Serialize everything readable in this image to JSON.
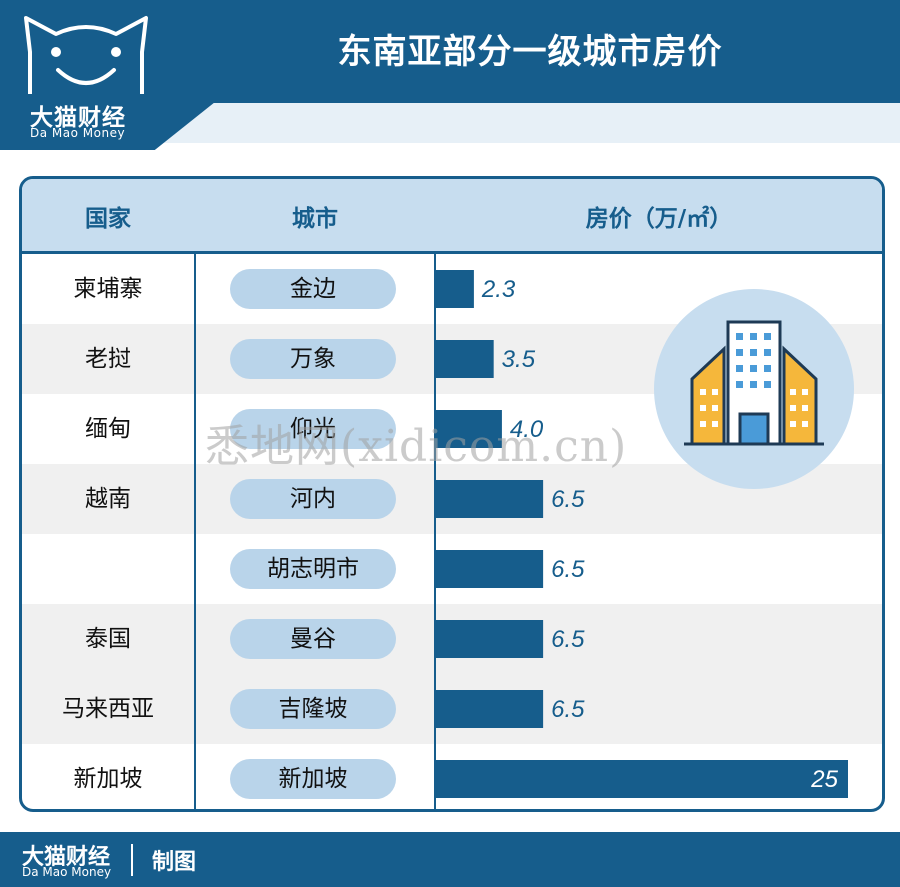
{
  "header": {
    "title": "东南亚部分一级城市房价",
    "logo_cn": "大猫财经",
    "logo_en": "Da Mao Money"
  },
  "table": {
    "col_country": "国家",
    "col_city": "城市",
    "col_price": "房价（万/㎡）"
  },
  "colors": {
    "primary": "#165d8c",
    "header_bg": "#c7ddef",
    "pill": "#b9d4ea",
    "alt_row": "#f0f0f0"
  },
  "chart_data": {
    "type": "bar",
    "title": "东南亚部分一级城市房价",
    "ylabel": "房价（万/㎡）",
    "xlim": [
      0,
      25
    ],
    "rows": [
      {
        "country": "柬埔寨",
        "city": "金边",
        "value": 2.3,
        "label": "2.3"
      },
      {
        "country": "老挝",
        "city": "万象",
        "value": 3.5,
        "label": "3.5"
      },
      {
        "country": "缅甸",
        "city": "仰光",
        "value": 4.0,
        "label": "4.0"
      },
      {
        "country": "越南",
        "city": "河内",
        "value": 6.5,
        "label": "6.5"
      },
      {
        "country": "",
        "city": "胡志明市",
        "value": 6.5,
        "label": "6.5"
      },
      {
        "country": "泰国",
        "city": "曼谷",
        "value": 6.5,
        "label": "6.5"
      },
      {
        "country": "马来西亚",
        "city": "吉隆坡",
        "value": 6.5,
        "label": "6.5"
      },
      {
        "country": "新加坡",
        "city": "新加坡",
        "value": 25,
        "label": "25"
      }
    ]
  },
  "icon": "building-icon",
  "watermark": "悉地网(xidicom.cn)",
  "footer": {
    "logo_cn": "大猫财经",
    "logo_en": "Da Mao Money",
    "made": "制图"
  }
}
